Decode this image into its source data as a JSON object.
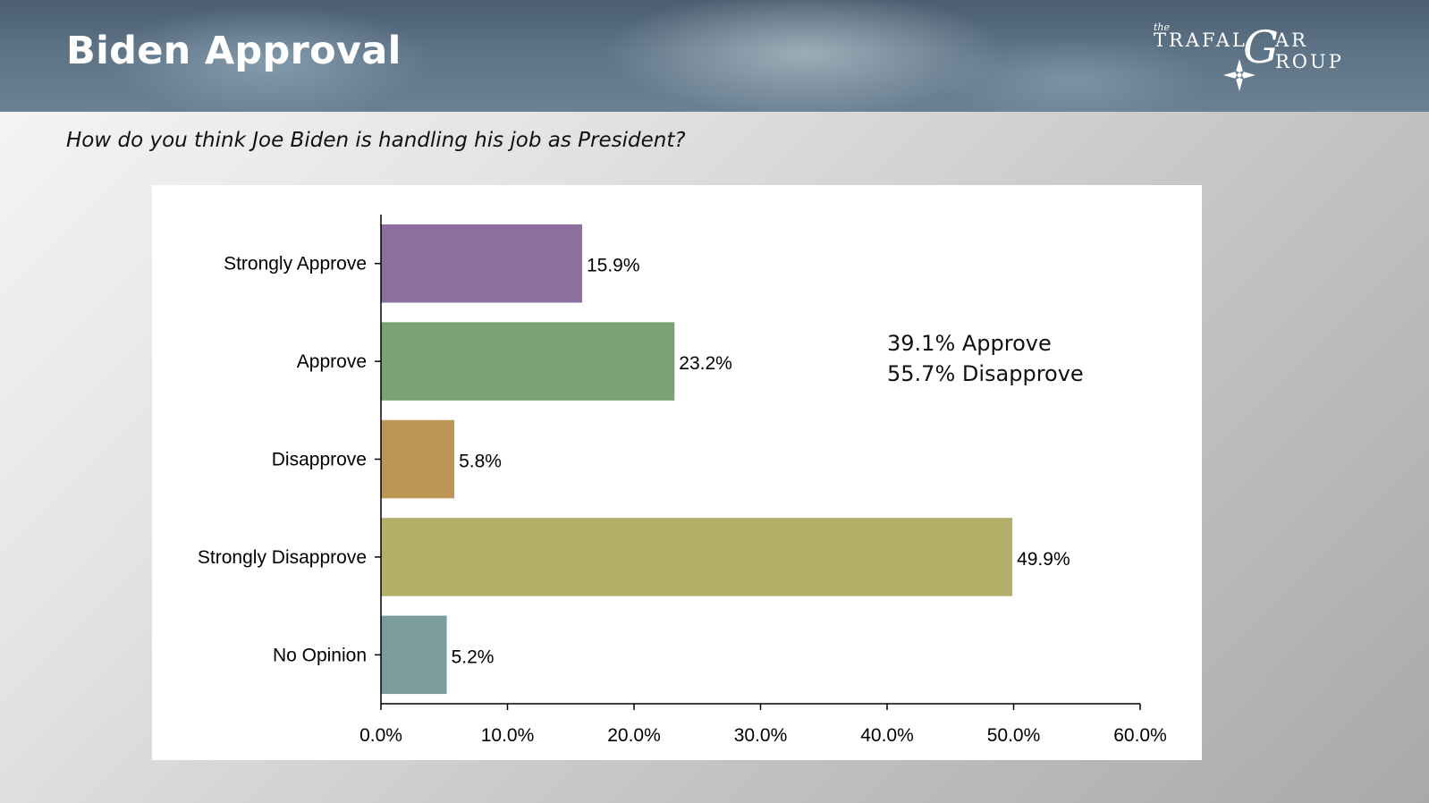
{
  "header": {
    "title": "Biden Approval",
    "logo": {
      "the": "the",
      "line1": "TRAFAL",
      "g_letter": "G",
      "line1b": "AR",
      "line2": "ROUP",
      "icon": "compass-star-icon"
    }
  },
  "question": "How do you think Joe Biden is handling his job as President?",
  "summary": {
    "approve": "39.1% Approve",
    "disapprove": "55.7% Disapprove"
  },
  "chart_data": {
    "type": "bar",
    "orientation": "horizontal",
    "categories": [
      "Strongly Approve",
      "Approve",
      "Disapprove",
      "Strongly Disapprove",
      "No Opinion"
    ],
    "values": [
      15.9,
      23.2,
      5.8,
      49.9,
      5.2
    ],
    "value_labels": [
      "15.9%",
      "23.2%",
      "5.8%",
      "49.9%",
      "5.2%"
    ],
    "colors": [
      "#8c6f9e",
      "#79a372",
      "#bb9655",
      "#b4af69",
      "#7a9c9c"
    ],
    "xlim": [
      0,
      60
    ],
    "xticks": [
      "0.0%",
      "10.0%",
      "20.0%",
      "30.0%",
      "40.0%",
      "50.0%",
      "60.0%"
    ],
    "xlabel": "",
    "ylabel": "",
    "grid": false
  }
}
